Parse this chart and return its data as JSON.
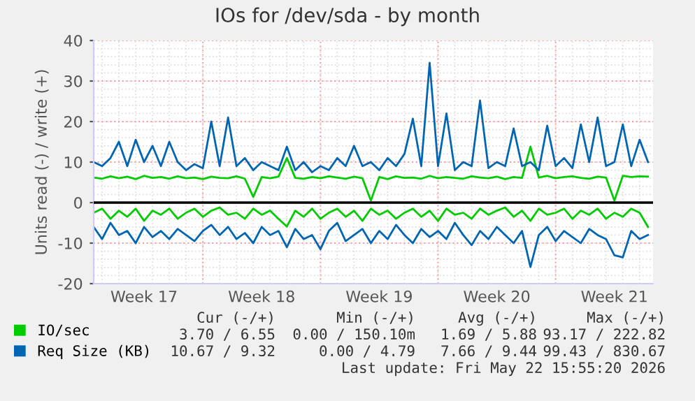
{
  "chart_data": {
    "type": "line",
    "title": "IOs for /dev/sda - by month",
    "ylabel": "Units read (-) / write (+)",
    "ylim": [
      -20,
      40
    ],
    "yticks": [
      -20,
      -10,
      0,
      10,
      20,
      30,
      40
    ],
    "categories": [
      null,
      null,
      null,
      null,
      null,
      null,
      "Week 17",
      null,
      null,
      null,
      null,
      null,
      null,
      null,
      null,
      null,
      null,
      null,
      null,
      null,
      "Week 18",
      null,
      null,
      null,
      null,
      null,
      null,
      null,
      null,
      null,
      null,
      null,
      null,
      null,
      "Week 19",
      null,
      null,
      null,
      null,
      null,
      null,
      null,
      null,
      null,
      null,
      null,
      null,
      null,
      "Week 20",
      null,
      null,
      null,
      null,
      null,
      null,
      null,
      null,
      null,
      null,
      null,
      null,
      null,
      "Week 21",
      null,
      null,
      null,
      null
    ],
    "grid": true,
    "legend": "bottom left",
    "marker": "none",
    "line_style": "solid",
    "ref_lines": [
      {
        "axis": "y",
        "value": 0,
        "color": "#000000"
      }
    ],
    "series": [
      {
        "color": "#00cc00",
        "values": [
          -2.5,
          -1.5,
          -4,
          -2,
          -3.5,
          -1.5,
          -4.5,
          -2,
          -3,
          -1.5,
          -4,
          -2.5,
          -1.5,
          -3.5,
          -2,
          -1.2,
          -3,
          -2.5,
          -4,
          -1.5,
          -3,
          -2,
          -4,
          -5.9,
          -2,
          -3.5,
          -1.5,
          -4,
          -2.5,
          -1.5,
          -3.5,
          -2,
          -4.5,
          -1.5,
          -3,
          -2,
          -4,
          -2.5,
          -1.5,
          -3.5,
          -2,
          -4.5,
          -1.5,
          -3,
          -2.5,
          -4,
          -1.5,
          -3,
          -2,
          -1.2,
          -3.5,
          -2,
          -4.5,
          -1.5,
          -3,
          -2.5,
          -1.5,
          -4,
          -2,
          -3,
          -1.5,
          -4,
          -2.5,
          -3.5,
          -1.5,
          -2.5,
          -6
        ]
      },
      {
        "name": "IO/sec",
        "color": "#00cc00",
        "values": [
          6.2,
          5.9,
          6.5,
          6,
          6.4,
          5.8,
          6.6,
          6.1,
          6.3,
          5.9,
          6.5,
          6,
          6.2,
          5.8,
          6.4,
          6.1,
          6,
          6.5,
          5.9,
          1.4,
          6.3,
          6,
          6.4,
          11,
          6.1,
          5.9,
          6.3,
          6,
          6.5,
          6.2,
          5.9,
          6.4,
          6,
          0.5,
          6.3,
          5.8,
          6.5,
          6.1,
          6.2,
          5.9,
          6.6,
          6,
          6.3,
          6.1,
          5.9,
          6.5,
          6.2,
          6,
          6.4,
          5.8,
          6.3,
          6.1,
          13.8,
          6.2,
          6.6,
          6,
          6.3,
          6.5,
          6.1,
          5.9,
          6.4,
          6.2,
          0.5,
          6.6,
          6.3,
          6.5,
          6.4
        ]
      },
      {
        "color": "#0066b3",
        "values": [
          -6,
          -9,
          -5,
          -8,
          -7,
          -10,
          -6,
          -8.5,
          -7,
          -9,
          -6.5,
          -8,
          -9.5,
          -7,
          -5.5,
          -8,
          -6,
          -9,
          -7.5,
          -10,
          -6,
          -8,
          -7,
          -11,
          -6.5,
          -9,
          -8,
          -11.5,
          -7,
          -5,
          -9.5,
          -8,
          -6.5,
          -10,
          -7,
          -9,
          -5.5,
          -8,
          -10,
          -6.5,
          -8.5,
          -7,
          -9,
          -5,
          -8,
          -10.5,
          -7,
          -9,
          -6,
          -8,
          -10,
          -7,
          -15.9,
          -8,
          -6,
          -9.5,
          -7,
          -8.5,
          -10,
          -6.5,
          -8,
          -9,
          -13,
          -13.5,
          -7,
          -9,
          -8
        ]
      },
      {
        "name": "Req Size (KB)",
        "color": "#0066b3",
        "values": [
          10,
          9,
          11,
          15,
          9,
          15.5,
          10,
          14,
          9,
          15,
          10,
          8,
          9.5,
          8.5,
          20,
          9,
          21,
          9,
          11,
          8,
          10,
          9,
          8,
          13.8,
          8,
          10,
          7.5,
          9,
          8,
          11,
          9,
          14,
          9,
          10,
          8,
          11,
          9,
          12,
          20.7,
          9,
          34.5,
          9,
          22,
          8,
          10,
          9,
          25.2,
          8.5,
          10,
          9,
          18.3,
          9,
          10,
          8,
          19,
          9,
          11,
          8.5,
          19.3,
          10,
          21,
          9,
          10,
          19.3,
          9,
          15.5,
          10
        ]
      }
    ],
    "annotations": [
      "Cur (-/+)",
      "Min (-/+)",
      "Avg (-/+)",
      "Max (-/+)",
      "3.70 / 6.55",
      "0.00 / 150.10m",
      "1.69 / 5.88",
      "93.17 / 222.82",
      "10.67 / 9.32",
      "0.00 / 4.79",
      "7.66 / 9.44",
      "99.43 / 830.67",
      "Last update: Fri May 22 15:55:20 2026"
    ]
  }
}
